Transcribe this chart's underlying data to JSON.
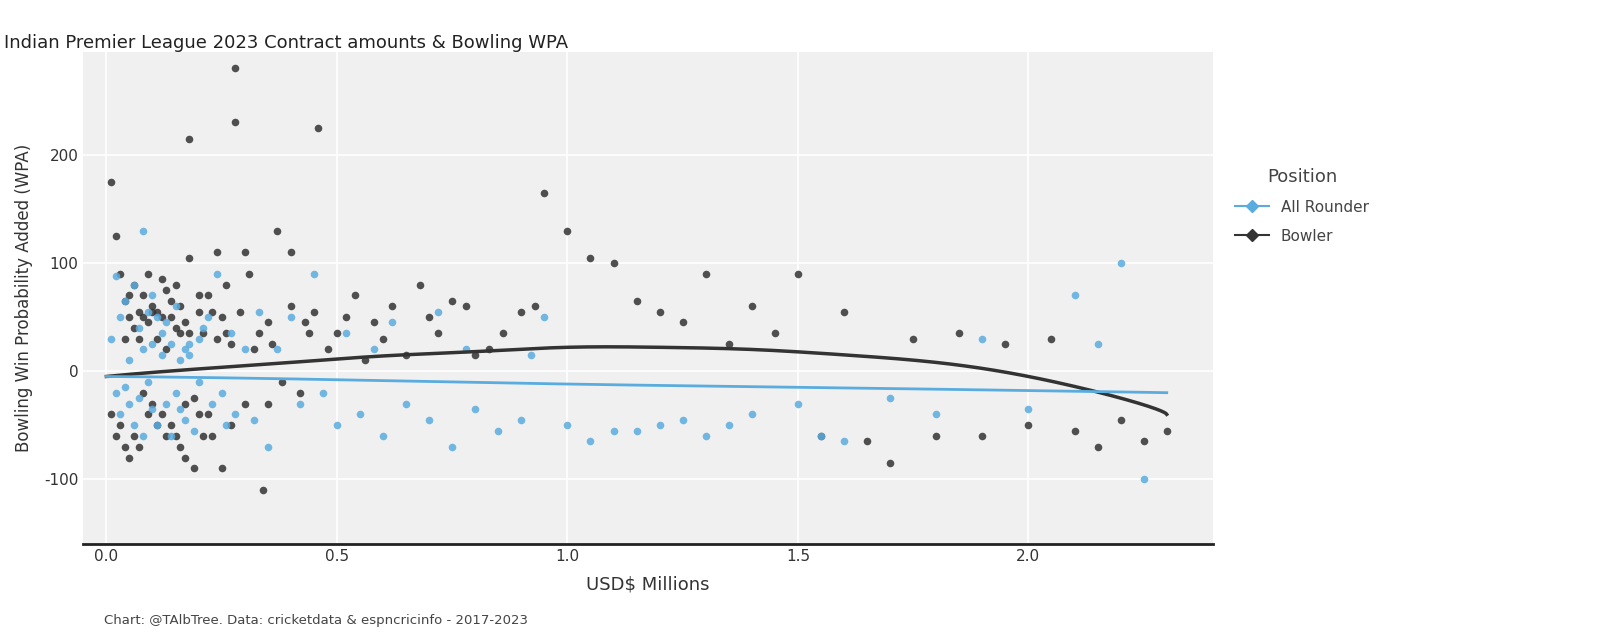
{
  "title": "Indian Premier League 2023 Contract amounts & Bowling WPA",
  "xlabel": "USD$ Millions",
  "ylabel": "Bowling Win Probability Added (WPA)",
  "caption": "Chart: @TAlbTree. Data: cricketdata & espncricinfo - 2017-2023",
  "legend_title": "Position",
  "legend_labels": [
    "All Rounder",
    "Bowler"
  ],
  "all_rounder_color": "#5aacde",
  "bowler_color": "#333333",
  "background_color": "#f0f0f0",
  "xlim": [
    -0.05,
    2.4
  ],
  "ylim": [
    -160,
    295
  ],
  "yticks": [
    -100,
    0,
    100,
    200
  ],
  "xticks": [
    0.0,
    0.5,
    1.0,
    1.5,
    2.0
  ],
  "all_rounder_x": [
    0.01,
    0.02,
    0.02,
    0.03,
    0.03,
    0.04,
    0.04,
    0.05,
    0.05,
    0.06,
    0.06,
    0.07,
    0.07,
    0.08,
    0.08,
    0.08,
    0.09,
    0.09,
    0.1,
    0.1,
    0.1,
    0.11,
    0.11,
    0.12,
    0.12,
    0.13,
    0.13,
    0.14,
    0.14,
    0.15,
    0.15,
    0.16,
    0.16,
    0.17,
    0.17,
    0.18,
    0.18,
    0.19,
    0.2,
    0.2,
    0.21,
    0.22,
    0.23,
    0.24,
    0.25,
    0.26,
    0.27,
    0.28,
    0.3,
    0.32,
    0.33,
    0.35,
    0.37,
    0.4,
    0.42,
    0.45,
    0.47,
    0.5,
    0.52,
    0.55,
    0.58,
    0.6,
    0.62,
    0.65,
    0.7,
    0.72,
    0.75,
    0.78,
    0.8,
    0.85,
    0.9,
    0.92,
    0.95,
    1.0,
    1.05,
    1.1,
    1.15,
    1.2,
    1.25,
    1.3,
    1.35,
    1.4,
    1.5,
    1.55,
    1.6,
    1.7,
    1.8,
    1.9,
    2.0,
    2.1,
    2.15,
    2.2,
    2.25
  ],
  "all_rounder_y": [
    30,
    88,
    -20,
    50,
    -40,
    65,
    -15,
    10,
    -30,
    80,
    -50,
    40,
    -25,
    130,
    20,
    -60,
    -10,
    55,
    70,
    -35,
    25,
    50,
    -50,
    35,
    15,
    -30,
    45,
    -60,
    25,
    60,
    -20,
    10,
    -35,
    20,
    -45,
    25,
    15,
    -55,
    30,
    -10,
    40,
    50,
    -30,
    90,
    -20,
    -50,
    35,
    -40,
    20,
    -45,
    55,
    -70,
    20,
    50,
    -30,
    90,
    -20,
    -50,
    35,
    -40,
    20,
    -60,
    45,
    -30,
    -45,
    55,
    -70,
    20,
    -35,
    -55,
    -45,
    15,
    50,
    -50,
    -65,
    -55,
    -55,
    -50,
    -45,
    -60,
    -50,
    -40,
    -30,
    -60,
    -65,
    -25,
    -40,
    30,
    -35,
    70,
    25,
    100,
    -100
  ],
  "bowler_x": [
    0.01,
    0.01,
    0.02,
    0.02,
    0.03,
    0.03,
    0.04,
    0.04,
    0.04,
    0.05,
    0.05,
    0.05,
    0.06,
    0.06,
    0.06,
    0.07,
    0.07,
    0.07,
    0.08,
    0.08,
    0.08,
    0.09,
    0.09,
    0.09,
    0.1,
    0.1,
    0.1,
    0.11,
    0.11,
    0.11,
    0.12,
    0.12,
    0.12,
    0.13,
    0.13,
    0.13,
    0.14,
    0.14,
    0.14,
    0.15,
    0.15,
    0.15,
    0.16,
    0.16,
    0.16,
    0.17,
    0.17,
    0.17,
    0.18,
    0.18,
    0.18,
    0.19,
    0.19,
    0.2,
    0.2,
    0.2,
    0.21,
    0.21,
    0.22,
    0.22,
    0.23,
    0.23,
    0.24,
    0.24,
    0.25,
    0.25,
    0.26,
    0.26,
    0.27,
    0.27,
    0.28,
    0.28,
    0.29,
    0.3,
    0.3,
    0.31,
    0.32,
    0.33,
    0.34,
    0.35,
    0.35,
    0.36,
    0.37,
    0.38,
    0.4,
    0.4,
    0.42,
    0.43,
    0.44,
    0.45,
    0.46,
    0.48,
    0.5,
    0.52,
    0.54,
    0.56,
    0.58,
    0.6,
    0.62,
    0.65,
    0.68,
    0.7,
    0.72,
    0.75,
    0.78,
    0.8,
    0.83,
    0.86,
    0.9,
    0.93,
    0.95,
    1.0,
    1.05,
    1.1,
    1.15,
    1.2,
    1.25,
    1.3,
    1.35,
    1.4,
    1.45,
    1.5,
    1.55,
    1.6,
    1.65,
    1.7,
    1.75,
    1.8,
    1.85,
    1.9,
    1.95,
    2.0,
    2.05,
    2.1,
    2.15,
    2.2,
    2.25,
    2.3
  ],
  "bowler_y": [
    175,
    -40,
    125,
    -60,
    90,
    -50,
    65,
    -70,
    30,
    70,
    50,
    -80,
    80,
    40,
    -60,
    55,
    30,
    -70,
    70,
    -20,
    50,
    45,
    90,
    -40,
    60,
    -30,
    55,
    55,
    30,
    -50,
    85,
    -40,
    50,
    75,
    20,
    -60,
    50,
    -50,
    65,
    -60,
    40,
    80,
    35,
    -70,
    60,
    -30,
    45,
    -80,
    215,
    105,
    35,
    -25,
    -90,
    70,
    -40,
    55,
    35,
    -60,
    70,
    -40,
    55,
    -60,
    30,
    110,
    50,
    -90,
    35,
    80,
    25,
    -50,
    280,
    230,
    55,
    110,
    -30,
    90,
    20,
    35,
    -110,
    45,
    -30,
    25,
    130,
    -10,
    60,
    110,
    -20,
    45,
    35,
    55,
    225,
    20,
    35,
    50,
    70,
    10,
    45,
    30,
    60,
    15,
    80,
    50,
    35,
    65,
    60,
    15,
    20,
    35,
    55,
    60,
    165,
    130,
    105,
    100,
    65,
    55,
    45,
    90,
    25,
    60,
    35,
    90,
    -60,
    55,
    -65,
    -85,
    30,
    -60,
    35,
    -60,
    25,
    -50,
    30,
    -55,
    -70,
    -45,
    -65,
    -55
  ],
  "bowler_trend_x": [
    0.0,
    0.2,
    0.4,
    0.6,
    0.8,
    1.0,
    1.2,
    1.4,
    1.6,
    1.8,
    2.0,
    2.2,
    2.3
  ],
  "bowler_trend_y": [
    -5,
    2,
    8,
    14,
    18,
    22,
    22,
    20,
    15,
    8,
    -5,
    -25,
    -40
  ],
  "ar_trend_x": [
    0.0,
    0.5,
    1.0,
    1.5,
    2.0,
    2.3
  ],
  "ar_trend_y": [
    -5,
    -8,
    -12,
    -15,
    -18,
    -20
  ]
}
